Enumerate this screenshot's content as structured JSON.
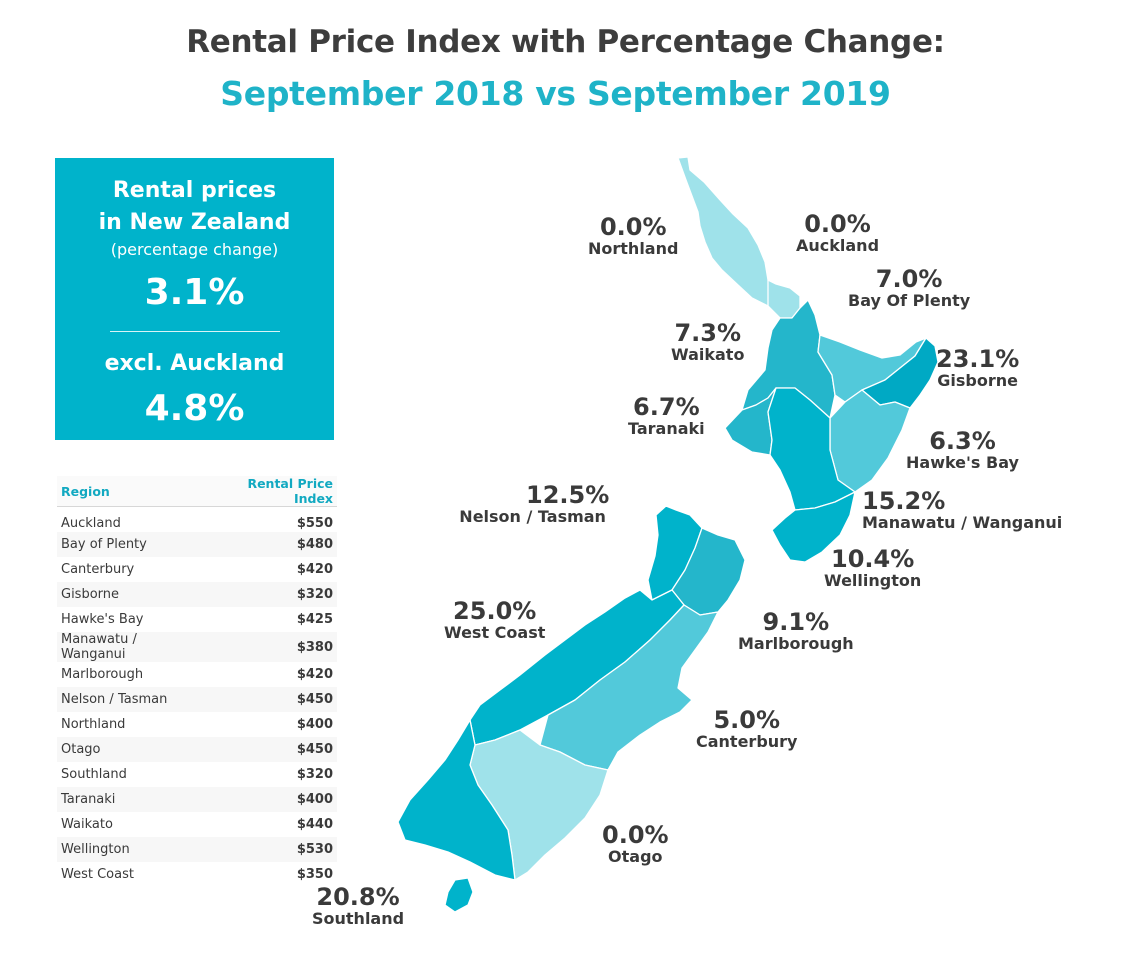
{
  "title": "Rental Price Index with Percentage Change:",
  "subtitle": "September 2018 vs September 2019",
  "summary": {
    "heading_line1": "Rental prices",
    "heading_line2": "in New Zealand",
    "note": "(percentage change)",
    "nz_value": "3.1%",
    "excl_label": "excl. Auckland",
    "excl_value": "4.8%"
  },
  "table": {
    "col_region": "Region",
    "col_index": "Rental Price Index",
    "rows": [
      {
        "region": "Auckland",
        "index": "$550"
      },
      {
        "region": "Bay of Plenty",
        "index": "$480"
      },
      {
        "region": "Canterbury",
        "index": "$420"
      },
      {
        "region": "Gisborne",
        "index": "$320"
      },
      {
        "region": "Hawke's Bay",
        "index": "$425"
      },
      {
        "region": "Manawatu / Wanganui",
        "index": "$380"
      },
      {
        "region": "Marlborough",
        "index": "$420"
      },
      {
        "region": "Nelson / Tasman",
        "index": "$450"
      },
      {
        "region": "Northland",
        "index": "$400"
      },
      {
        "region": "Otago",
        "index": "$450"
      },
      {
        "region": "Southland",
        "index": "$320"
      },
      {
        "region": "Taranaki",
        "index": "$400"
      },
      {
        "region": "Waikato",
        "index": "$440"
      },
      {
        "region": "Wellington",
        "index": "$530"
      },
      {
        "region": "West Coast",
        "index": "$350"
      }
    ]
  },
  "map_labels": {
    "northland": {
      "pct": "0.0%",
      "name": "Northland"
    },
    "auckland": {
      "pct": "0.0%",
      "name": "Auckland"
    },
    "bay_of_plenty": {
      "pct": "7.0%",
      "name": "Bay Of Plenty"
    },
    "waikato": {
      "pct": "7.3%",
      "name": "Waikato"
    },
    "gisborne": {
      "pct": "23.1%",
      "name": "Gisborne"
    },
    "taranaki": {
      "pct": "6.7%",
      "name": "Taranaki"
    },
    "hawkes_bay": {
      "pct": "6.3%",
      "name": "Hawke's Bay"
    },
    "nelson_tasman": {
      "pct": "12.5%",
      "name": "Nelson / Tasman"
    },
    "manawatu": {
      "pct": "15.2%",
      "name": "Manawatu / Wanganui"
    },
    "wellington": {
      "pct": "10.4%",
      "name": "Wellington"
    },
    "west_coast": {
      "pct": "25.0%",
      "name": "West Coast"
    },
    "marlborough": {
      "pct": "9.1%",
      "name": "Marlborough"
    },
    "canterbury": {
      "pct": "5.0%",
      "name": "Canterbury"
    },
    "otago": {
      "pct": "0.0%",
      "name": "Otago"
    },
    "southland": {
      "pct": "20.8%",
      "name": "Southland"
    }
  },
  "colors": {
    "title_accent": "#1fb3c8",
    "panel": "#00b3cb",
    "shade_low": "#9fe2ea",
    "shade_mid": "#52c9da",
    "shade_high": "#24b6cb",
    "shade_top": "#00a9c4"
  }
}
